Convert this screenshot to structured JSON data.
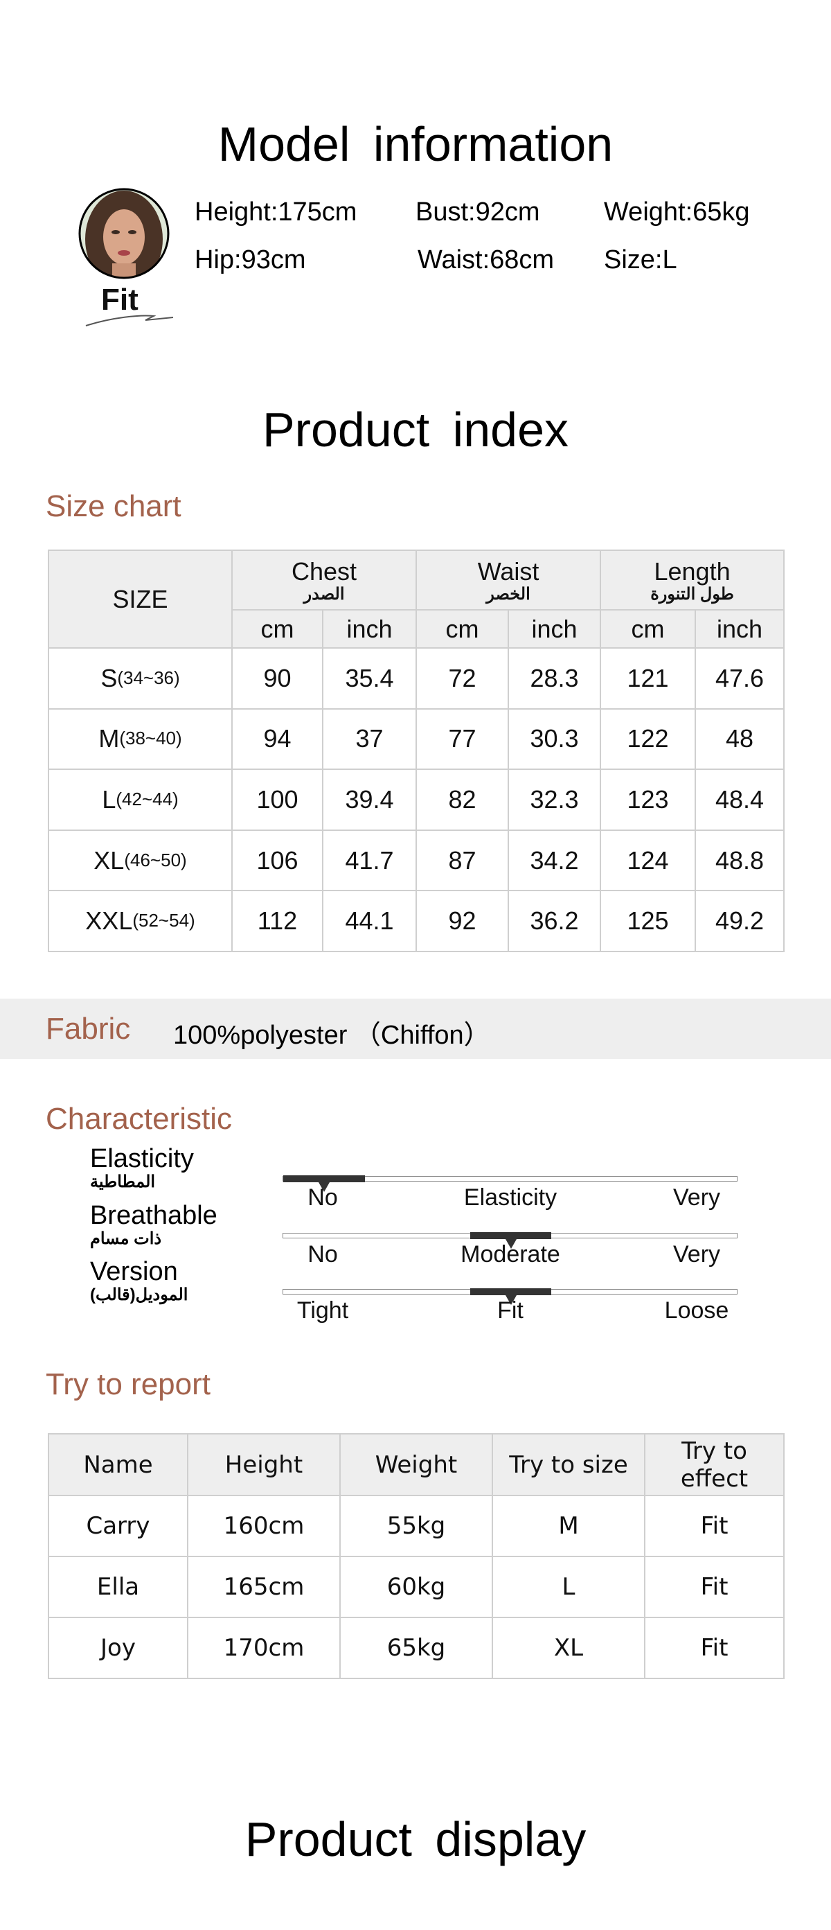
{
  "model": {
    "title": "Model  information",
    "badge": "Fit",
    "rows": [
      [
        "Height:175cm",
        "Bust:92cm",
        "Weight:65kg"
      ],
      [
        "Hip:93cm",
        "Waist:68cm",
        "Size:L"
      ]
    ]
  },
  "product_index": {
    "title": "Product  index"
  },
  "size_chart": {
    "title": "Size chart",
    "size_header": "SIZE",
    "groups": [
      {
        "en": "Chest",
        "ar": "الصدر"
      },
      {
        "en": "Waist",
        "ar": "الخصر"
      },
      {
        "en": "Length",
        "ar": "طول التنورة"
      }
    ],
    "units": [
      "cm",
      "inch",
      "cm",
      "inch",
      "cm",
      "inch"
    ],
    "rows": [
      {
        "size": "S",
        "range": "(34~36)",
        "values": [
          "90",
          "35.4",
          "72",
          "28.3",
          "121",
          "47.6"
        ]
      },
      {
        "size": "M",
        "range": "(38~40)",
        "values": [
          "94",
          "37",
          "77",
          "30.3",
          "122",
          "48"
        ]
      },
      {
        "size": "L",
        "range": "(42~44)",
        "values": [
          "100",
          "39.4",
          "82",
          "32.3",
          "123",
          "48.4"
        ]
      },
      {
        "size": "XL",
        "range": "(46~50)",
        "values": [
          "106",
          "41.7",
          "87",
          "34.2",
          "124",
          "48.8"
        ]
      },
      {
        "size": "XXL",
        "range": "(52~54)",
        "values": [
          "112",
          "44.1",
          "92",
          "36.2",
          "125",
          "49.2"
        ]
      }
    ]
  },
  "fabric": {
    "label": "Fabric",
    "value": "100%polyester （Chiffon）"
  },
  "characteristic": {
    "title": "Characteristic",
    "items": [
      {
        "en": "Elasticity",
        "ar": "المطاطية",
        "ticks": [
          "No",
          "Elasticity",
          "Very"
        ],
        "selected": 0
      },
      {
        "en": "Breathable",
        "ar": "ذات مسام",
        "ticks": [
          "No",
          "Moderate",
          "Very"
        ],
        "selected": 1
      },
      {
        "en": "Version",
        "ar": "الموديل(قالب)",
        "ticks": [
          "Tight",
          "Fit",
          "Loose"
        ],
        "selected": 1
      }
    ]
  },
  "report": {
    "title": "Try to report",
    "headers": [
      "Name",
      "Height",
      "Weight",
      "Try to size",
      "Try to effect"
    ],
    "rows": [
      [
        "Carry",
        "160cm",
        "55kg",
        "M",
        "Fit"
      ],
      [
        "Ella",
        "165cm",
        "60kg",
        "L",
        "Fit"
      ],
      [
        "Joy",
        "170cm",
        "65kg",
        "XL",
        "Fit"
      ]
    ]
  },
  "product_display": {
    "title": "Product display"
  },
  "colors": {
    "accent": "#a3624c",
    "band": "#eeeeee"
  }
}
